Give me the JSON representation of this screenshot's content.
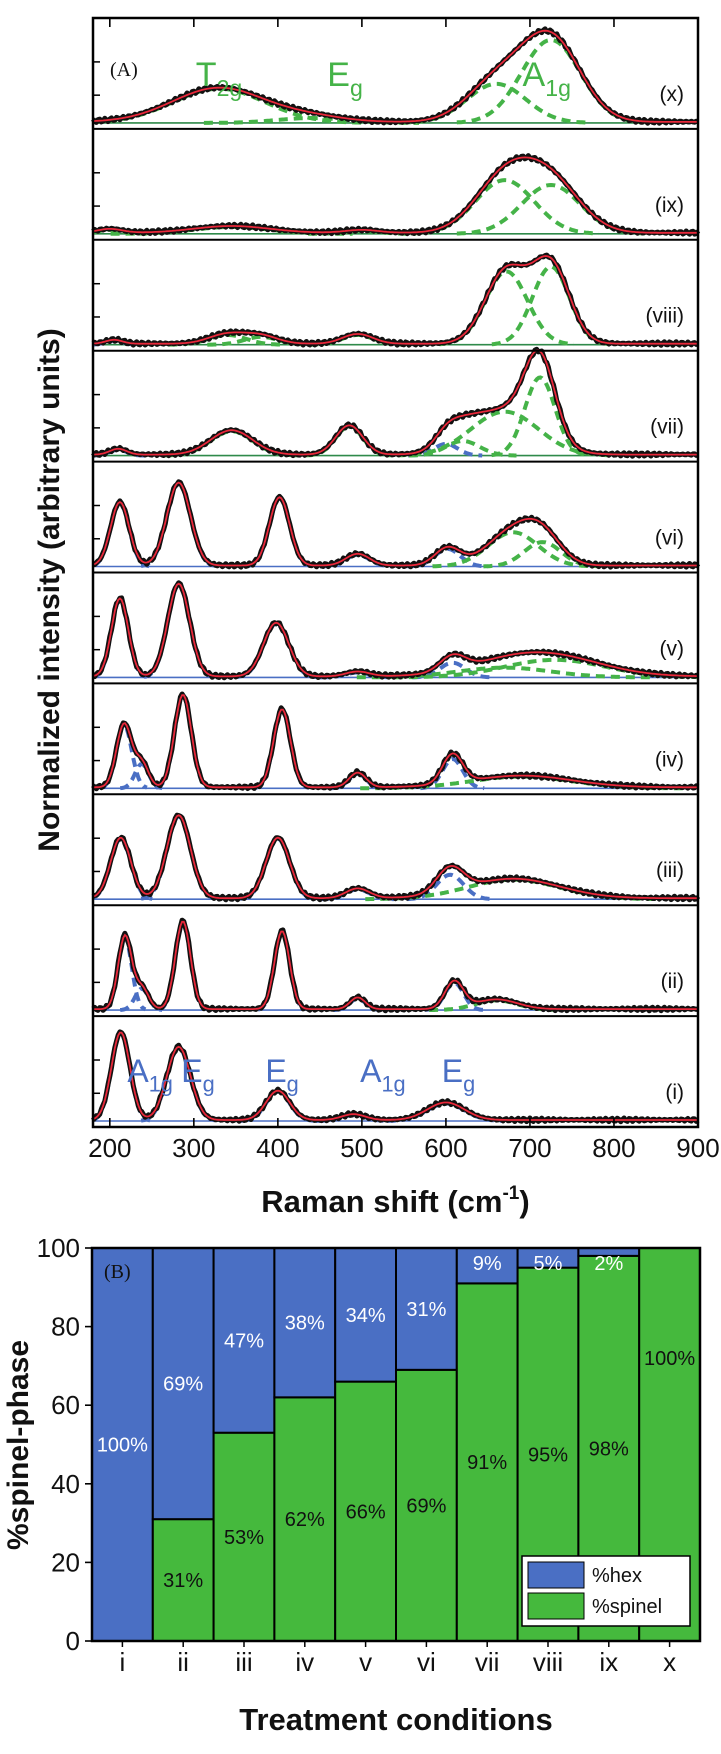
{
  "chart_data": [
    {
      "type": "line",
      "panel_label": "(A)",
      "xlabel": "Raman shift (cm",
      "xlabel_sup": "-1",
      "xlabel_close": ")",
      "ylabel": "Normalized intensity (arbitrary units)",
      "xlim": [
        180,
        900
      ],
      "xticks": [
        200,
        300,
        400,
        500,
        600,
        700,
        800,
        900
      ],
      "legend_note": "black = measured spectrum, red = total fit, blue dashed = hexagonal-phase peaks, green dashed = spinel-phase peaks",
      "colors": {
        "data": "#111111",
        "fit": "#e8283a",
        "hex": "#4a6fc4",
        "spinel": "#45b348",
        "baseline_spinel": "#2f8a4a"
      },
      "spinel_mode_labels": [
        {
          "base": "T",
          "sub": "2g",
          "x": 330
        },
        {
          "base": "E",
          "sub": "g",
          "x": 480
        },
        {
          "base": "A",
          "sub": "1g",
          "x": 720
        }
      ],
      "hex_mode_labels": [
        {
          "base": "A",
          "sub": "1g",
          "x": 248
        },
        {
          "base": "E",
          "sub": "g",
          "x": 305
        },
        {
          "base": "E",
          "sub": "g",
          "x": 405
        },
        {
          "base": "A",
          "sub": "1g",
          "x": 525
        },
        {
          "base": "E",
          "sub": "g",
          "x": 615
        }
      ],
      "series": [
        {
          "name": "(i)",
          "hex_peaks": [
            [
              213,
              0.9,
              11
            ],
            [
              282,
              0.75,
              14
            ],
            [
              400,
              0.3,
              14
            ],
            [
              490,
              0.06,
              14
            ],
            [
              600,
              0.18,
              22
            ]
          ],
          "spinel_peaks": []
        },
        {
          "name": "(ii)",
          "hex_peaks": [
            [
              218,
              0.75,
              8
            ],
            [
              238,
              0.22,
              8
            ],
            [
              287,
              0.9,
              9
            ],
            [
              405,
              0.8,
              9
            ],
            [
              495,
              0.12,
              9
            ],
            [
              610,
              0.28,
              11
            ]
          ],
          "spinel_peaks": [
            [
              660,
              0.1,
              25
            ]
          ]
        },
        {
          "name": "(iii)",
          "hex_peaks": [
            [
              213,
              0.62,
              12
            ],
            [
              282,
              0.85,
              14
            ],
            [
              400,
              0.62,
              14
            ],
            [
              495,
              0.1,
              14
            ],
            [
              605,
              0.25,
              16
            ]
          ],
          "spinel_peaks": [
            [
              680,
              0.2,
              55
            ]
          ]
        },
        {
          "name": "(iv)",
          "hex_peaks": [
            [
              217,
              0.65,
              9
            ],
            [
              238,
              0.25,
              8
            ],
            [
              287,
              0.95,
              10
            ],
            [
              405,
              0.8,
              10
            ],
            [
              495,
              0.15,
              10
            ],
            [
              608,
              0.3,
              12
            ]
          ],
          "spinel_peaks": [
            [
              690,
              0.12,
              60
            ]
          ]
        },
        {
          "name": "(v)",
          "hex_peaks": [
            [
              212,
              0.8,
              10
            ],
            [
              282,
              0.95,
              13
            ],
            [
              398,
              0.55,
              15
            ],
            [
              495,
              0.05,
              14
            ],
            [
              608,
              0.15,
              15
            ]
          ],
          "spinel_peaks": [
            [
              670,
              0.1,
              55
            ],
            [
              730,
              0.18,
              60
            ]
          ]
        },
        {
          "name": "(vi)",
          "hex_peaks": [
            [
              212,
              0.65,
              11
            ],
            [
              282,
              0.85,
              14
            ],
            [
              402,
              0.7,
              12
            ],
            [
              495,
              0.12,
              14
            ],
            [
              602,
              0.18,
              15
            ]
          ],
          "spinel_peaks": [
            [
              680,
              0.35,
              30
            ],
            [
              715,
              0.25,
              22
            ]
          ]
        },
        {
          "name": "(vii)",
          "hex_peaks": [
            [
              600,
              0.12,
              14
            ],
            [
              210,
              0.06,
              10
            ]
          ],
          "spinel_peaks": [
            [
              345,
              0.25,
              25
            ],
            [
              485,
              0.3,
              16
            ],
            [
              620,
              0.15,
              20
            ],
            [
              670,
              0.45,
              40
            ],
            [
              712,
              0.8,
              18
            ]
          ]
        },
        {
          "name": "(viii)",
          "hex_peaks": [
            [
              205,
              0.04,
              10
            ]
          ],
          "spinel_peaks": [
            [
              340,
              0.1,
              22
            ],
            [
              380,
              0.08,
              20
            ],
            [
              495,
              0.1,
              18
            ],
            [
              672,
              0.75,
              25
            ],
            [
              725,
              0.8,
              22
            ]
          ]
        },
        {
          "name": "(ix)",
          "hex_peaks": [],
          "spinel_peaks": [
            [
              200,
              0.04,
              15
            ],
            [
              345,
              0.07,
              45
            ],
            [
              500,
              0.03,
              20
            ],
            [
              670,
              0.55,
              35
            ],
            [
              725,
              0.5,
              35
            ]
          ]
        },
        {
          "name": "(x)",
          "hex_peaks": [],
          "spinel_peaks": [
            [
              330,
              0.35,
              55
            ],
            [
              440,
              0.05,
              40
            ],
            [
              660,
              0.4,
              35
            ],
            [
              725,
              0.85,
              35
            ]
          ]
        }
      ]
    },
    {
      "type": "bar",
      "stacked": true,
      "panel_label": "(B)",
      "xlabel": "Treatment conditions",
      "ylabel": "%spinel-phase",
      "ylim": [
        0,
        100
      ],
      "yticks": [
        0,
        20,
        40,
        60,
        80,
        100
      ],
      "categories": [
        "i",
        "ii",
        "iii",
        "iv",
        "v",
        "vi",
        "vii",
        "viii",
        "ix",
        "x"
      ],
      "series": [
        {
          "name": "%spinel",
          "color": "#45b93d",
          "values": [
            0,
            31,
            53,
            62,
            66,
            69,
            91,
            95,
            98,
            100
          ],
          "labels": [
            "",
            "31%",
            "53%",
            "62%",
            "66%",
            "69%",
            "91%",
            "95%",
            "98%",
            "100%"
          ]
        },
        {
          "name": "%hex",
          "color": "#4a6fc4",
          "values": [
            100,
            69,
            47,
            38,
            34,
            31,
            9,
            5,
            2,
            0
          ],
          "labels": [
            "100%",
            "69%",
            "47%",
            "38%",
            "34%",
            "31%",
            "9%",
            "5%",
            "2%",
            ""
          ]
        }
      ],
      "legend": [
        {
          "label": "%hex",
          "color": "#4a6fc4"
        },
        {
          "label": "%spinel",
          "color": "#45b93d"
        }
      ],
      "legend_position": "bottom-right"
    }
  ]
}
